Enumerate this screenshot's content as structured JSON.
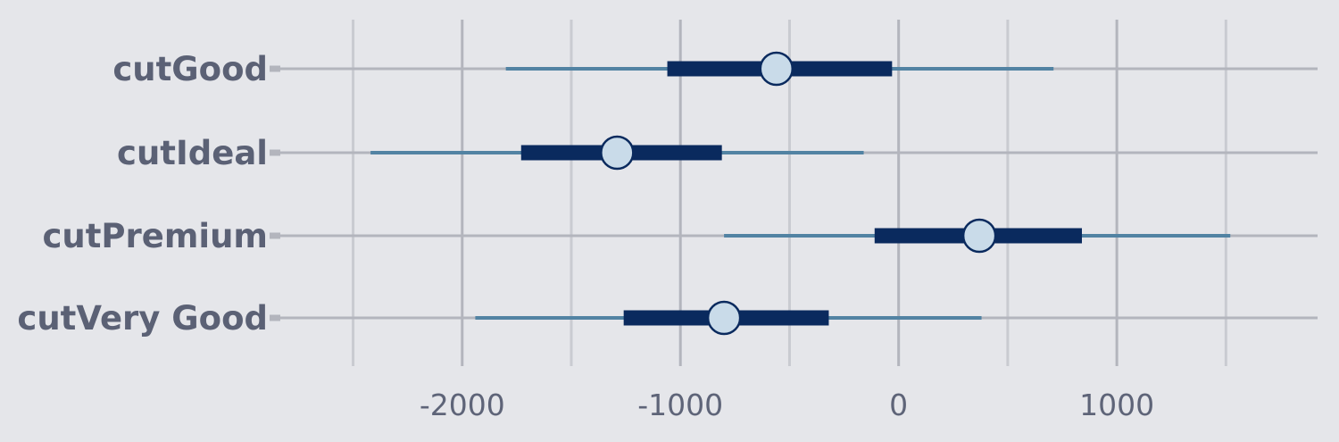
{
  "chart_data": {
    "type": "interval",
    "categories": [
      "cutGood",
      "cutIdeal",
      "cutPremium",
      "cutVery Good"
    ],
    "series": [
      {
        "values": [
          {
            "point": -560,
            "inner": [
              -1060,
              -30
            ],
            "outer": [
              -1800,
              710
            ]
          },
          {
            "point": -1290,
            "inner": [
              -1730,
              -810
            ],
            "outer": [
              -2420,
              -160
            ]
          },
          {
            "point": 370,
            "inner": [
              -110,
              840
            ],
            "outer": [
              -800,
              1520
            ]
          },
          {
            "point": -800,
            "inner": [
              -1260,
              -320
            ],
            "outer": [
              -1940,
              380
            ]
          }
        ]
      }
    ],
    "xlim": [
      -2850,
      1920
    ],
    "x_ticks": [
      -2000,
      -1000,
      0,
      1000
    ],
    "x_tick_labels": [
      "-2000",
      "-1000",
      "0",
      "1000"
    ],
    "grid": true,
    "colors": {
      "background": "#e5e6ea",
      "grid_major": "#b3b5bd",
      "grid_minor": "#c9cbd1",
      "outer_interval": "#5283a3",
      "inner_interval": "#0a2a5e",
      "point_fill": "#c9dbe9",
      "point_stroke": "#0a2a5e",
      "label_text": "#5b6175"
    }
  }
}
